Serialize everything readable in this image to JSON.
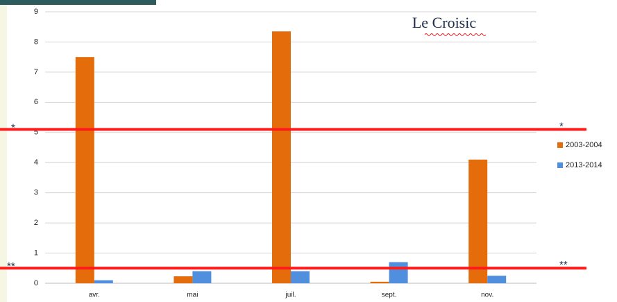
{
  "chart_data": {
    "type": "bar",
    "title": "Le Croisic",
    "categories": [
      "avr.",
      "mai",
      "juil.",
      "sept.",
      "nov."
    ],
    "series": [
      {
        "name": "2003-2004",
        "color": "#e46c0a",
        "values": [
          7.5,
          0.23,
          8.35,
          0.05,
          4.1
        ]
      },
      {
        "name": "2013-2014",
        "color": "#4f8fde",
        "values": [
          0.1,
          0.4,
          0.4,
          0.7,
          0.25
        ]
      }
    ],
    "ylim": [
      0,
      9
    ],
    "yticks": [
      0,
      1,
      2,
      3,
      4,
      5,
      6,
      7,
      8,
      9
    ],
    "grid": true,
    "legend": "right",
    "reference_lines": [
      {
        "value": 5.1,
        "label": "*",
        "color": "#ff1a1a"
      },
      {
        "value": 0.5,
        "label": "**",
        "color": "#ff1a1a"
      }
    ]
  }
}
